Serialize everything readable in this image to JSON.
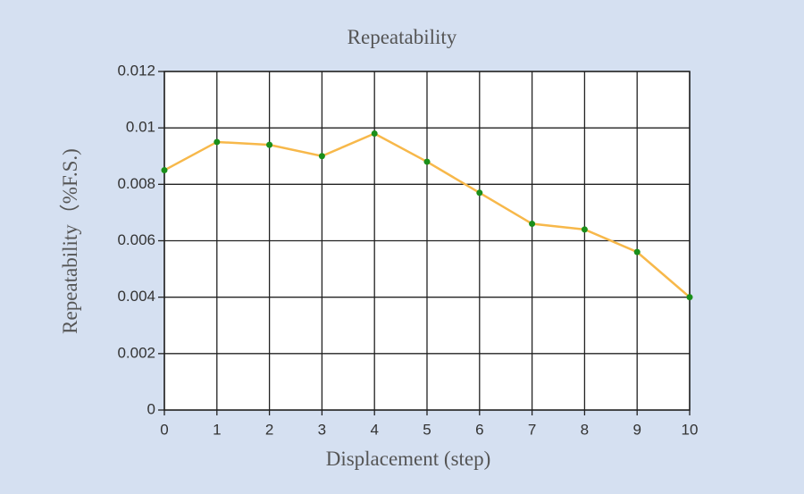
{
  "chart_data": {
    "type": "line",
    "title": "Repeatability",
    "x_label": "Displacement (step)",
    "y_label": "Repeatability（%F.S.)",
    "x": [
      0,
      1,
      2,
      3,
      4,
      5,
      6,
      7,
      8,
      9,
      10
    ],
    "series": [
      {
        "name": "Repeatability",
        "line_color": "#f7b84a",
        "marker_color": "#1a8f1a",
        "values": [
          0.0085,
          0.0095,
          0.0094,
          0.009,
          0.0098,
          0.0088,
          0.0077,
          0.0066,
          0.0064,
          0.0056,
          0.004
        ]
      }
    ],
    "xlim": [
      0,
      10
    ],
    "xticks": [
      0,
      1,
      2,
      3,
      4,
      5,
      6,
      7,
      8,
      9,
      10
    ],
    "ylim": [
      0,
      0.012
    ],
    "yticks": [
      0,
      0.002,
      0.004,
      0.006,
      0.008,
      0.01,
      0.012
    ],
    "grid": true
  }
}
